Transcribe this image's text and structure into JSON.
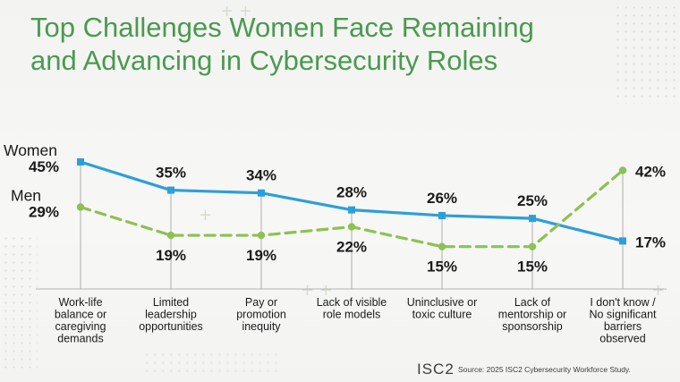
{
  "title": {
    "line1": "Top Challenges Women Face Remaining",
    "line2": "and Advancing in Cybersecurity Roles"
  },
  "footer": {
    "logo": "ISC2",
    "source": "Source: 2025 ISC2 Cybersecurity Workforce Study."
  },
  "colors": {
    "title": "#4a9a4f",
    "women": "#2d9fd8",
    "men": "#8cc153",
    "axis": "#9a9a9a",
    "text": "#1a1a1a"
  },
  "chart_data": {
    "type": "line",
    "title": "Top Challenges Women Face Remaining and Advancing in Cybersecurity Roles",
    "xlabel": "",
    "ylabel": "",
    "ylim": [
      0,
      50
    ],
    "grid": false,
    "value_suffix": "%",
    "categories": [
      [
        "Work-life",
        "balance or",
        "caregiving",
        "demands"
      ],
      [
        "Limited",
        "leadership",
        "opportunities"
      ],
      [
        "Pay or",
        "promotion",
        "inequity"
      ],
      [
        "Lack of visible",
        "role models"
      ],
      [
        "Uninclusive or",
        "toxic culture"
      ],
      [
        "Lack of",
        "mentorship or",
        "sponsorship"
      ],
      [
        "I don't know /",
        "No significant",
        "barriers",
        "observed"
      ]
    ],
    "series": [
      {
        "name": "Women",
        "values": [
          45,
          35,
          34,
          28,
          26,
          25,
          17
        ],
        "style": "solid",
        "label_position": [
          "left",
          "above",
          "above",
          "above",
          "above",
          "above",
          "right"
        ]
      },
      {
        "name": "Men",
        "values": [
          29,
          19,
          19,
          22,
          15,
          15,
          42
        ],
        "style": "dashed",
        "label_position": [
          "left",
          "below",
          "below",
          "below",
          "below",
          "below",
          "right"
        ]
      }
    ]
  }
}
